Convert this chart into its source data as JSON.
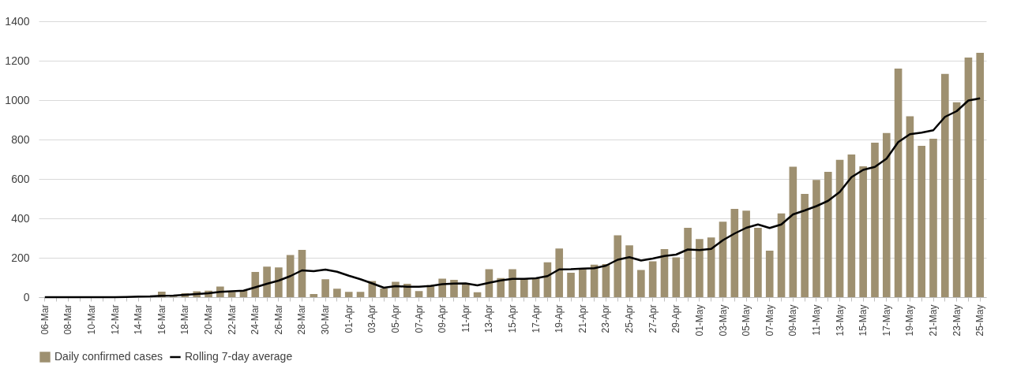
{
  "chart_data": {
    "type": "bar",
    "categories": [
      "06-Mar",
      null,
      "08-Mar",
      null,
      "10-Mar",
      null,
      "12-Mar",
      null,
      "14-Mar",
      null,
      "16-Mar",
      null,
      "18-Mar",
      null,
      "20-Mar",
      null,
      "22-Mar",
      null,
      "24-Mar",
      null,
      "26-Mar",
      null,
      "28-Mar",
      null,
      "30-Mar",
      null,
      "01-Apr",
      null,
      "03-Apr",
      null,
      "05-Apr",
      null,
      "07-Apr",
      null,
      "09-Apr",
      null,
      "11-Apr",
      null,
      "13-Apr",
      null,
      "15-Apr",
      null,
      "17-Apr",
      null,
      "19-Apr",
      null,
      "21-Apr",
      null,
      "23-Apr",
      null,
      "25-Apr",
      null,
      "27-Apr",
      null,
      "29-Apr",
      null,
      "01-May",
      null,
      "03-May",
      null,
      "05-May",
      null,
      "07-May",
      null,
      "09-May",
      null,
      "11-May",
      null,
      "13-May",
      null,
      "15-May",
      null,
      "17-May",
      null,
      "19-May",
      null,
      "21-May",
      null,
      "23-May",
      null,
      "25-May"
    ],
    "series": [
      {
        "name": "Daily confirmed cases",
        "color": "#9e9070",
        "values": [
          null,
          0,
          0,
          0,
          0,
          0,
          0,
          2,
          4,
          3,
          28,
          3,
          20,
          30,
          33,
          54,
          26,
          33,
          128,
          155,
          151,
          214,
          240,
          16,
          91,
          43,
          27,
          27,
          82,
          44,
          78,
          68,
          31,
          61,
          94,
          88,
          70,
          25,
          142,
          97,
          142,
          94,
          96,
          177,
          247,
          124,
          142,
          165,
          168,
          314,
          263,
          138,
          182,
          244,
          202,
          352,
          295,
          303,
          383,
          448,
          439,
          352,
          236,
          425,
          662,
          524,
          595,
          636,
          697,
          724,
          664,
          784,
          833,
          1160,
          918,
          768,
          804,
          1133,
          989,
          1216,
          1240
        ]
      },
      {
        "name": "Rolling 7-day average",
        "type": "line",
        "color": "#000000",
        "values": [
          0,
          0,
          0,
          0,
          0,
          0,
          0,
          1,
          3,
          4,
          7,
          8,
          12,
          16,
          20,
          27,
          30,
          33,
          50,
          68,
          84,
          107,
          136,
          132,
          140,
          129,
          109,
          91,
          70,
          48,
          56,
          53,
          53,
          57,
          66,
          69,
          70,
          60,
          73,
          85,
          93,
          93,
          96,
          107,
          141,
          142,
          145,
          147,
          160,
          190,
          203,
          186,
          196,
          209,
          216,
          242,
          239,
          245,
          289,
          323,
          352,
          369,
          351,
          369,
          420,
          440,
          462,
          489,
          534,
          609,
          646,
          661,
          703,
          787,
          827,
          835,
          847,
          915,
          944,
          998,
          1009
        ]
      }
    ],
    "ylim": [
      0,
      1400
    ],
    "yticks": [
      0,
      200,
      400,
      600,
      800,
      1000,
      1200,
      1400
    ],
    "grid": "y",
    "legend": "bottom"
  }
}
